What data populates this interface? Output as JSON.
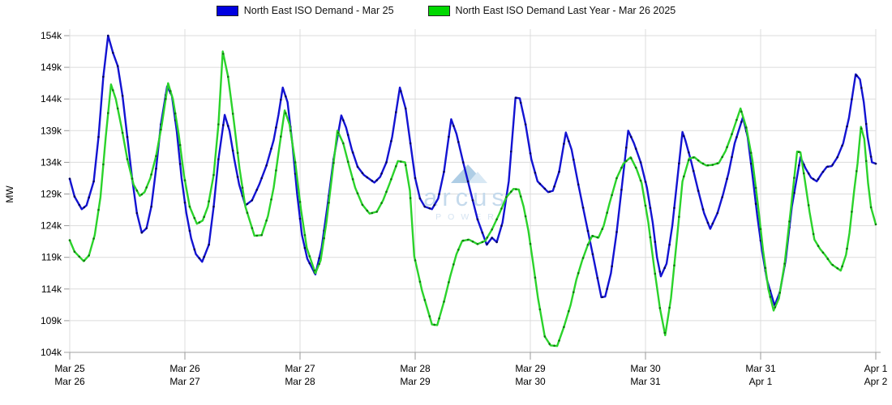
{
  "legend": {
    "items": [
      {
        "label": "North East ISO Demand - Mar 25",
        "color": "#0000e0"
      },
      {
        "label": "North East ISO Demand Last Year - Mar 26 2025",
        "color": "#00d800"
      }
    ]
  },
  "y_axis": {
    "title": "MW",
    "tick_labels": [
      "154k",
      "149k",
      "144k",
      "139k",
      "134k",
      "129k",
      "124k",
      "119k",
      "114k",
      "109k",
      "104k"
    ],
    "tick_values": [
      154,
      149,
      144,
      139,
      134,
      129,
      124,
      119,
      114,
      109,
      104
    ]
  },
  "x_axis": {
    "ticks": [
      {
        "top": "Mar 25",
        "bottom": "Mar 26"
      },
      {
        "top": "Mar 26",
        "bottom": "Mar 27"
      },
      {
        "top": "Mar 27",
        "bottom": "Mar 28"
      },
      {
        "top": "Mar 28",
        "bottom": "Mar 29"
      },
      {
        "top": "Mar 29",
        "bottom": "Mar 30"
      },
      {
        "top": "Mar 30",
        "bottom": "Mar 31"
      },
      {
        "top": "Mar 31",
        "bottom": "Apr 1"
      },
      {
        "top": "Apr 1",
        "bottom": "Apr 2"
      }
    ]
  },
  "watermark": {
    "word": "arcus",
    "sub": "POWER",
    "color": "#c5daec",
    "icon_color": "#aecde5",
    "icon_color_light": "#d8e8f4"
  },
  "chart_data": {
    "type": "line",
    "title": "",
    "xlabel": "",
    "ylabel": "MW",
    "x_unit": "hours from Mar 25 00:00 (1 gridline = 1 day)",
    "y_unit": "thousand MW",
    "x_range": [
      0,
      168
    ],
    "y_range": [
      104,
      154
    ],
    "grid": true,
    "legend_position": "top-center",
    "marker_every_hours": 1,
    "colors": {
      "grid": "#dcdcdc",
      "axis": "#a0a0a0",
      "tick": "#999999",
      "label": "#000000"
    },
    "series": [
      {
        "name": "North East ISO Demand - Mar 25",
        "color": "#1313d2",
        "marker_color": "#00005e",
        "points": [
          [
            0,
            131.4
          ],
          [
            1,
            128.6
          ],
          [
            2.5,
            126.6
          ],
          [
            3.5,
            127.2
          ],
          [
            5,
            131
          ],
          [
            6,
            138
          ],
          [
            7,
            147.5
          ],
          [
            8,
            154
          ],
          [
            9,
            151.3
          ],
          [
            10,
            149.2
          ],
          [
            11,
            144.5
          ],
          [
            12,
            138
          ],
          [
            13,
            131.5
          ],
          [
            14,
            126
          ],
          [
            15,
            122.9
          ],
          [
            16,
            123.6
          ],
          [
            17,
            127
          ],
          [
            18,
            133
          ],
          [
            19,
            140
          ],
          [
            20.3,
            146
          ],
          [
            21.3,
            144.5
          ],
          [
            22.3,
            139
          ],
          [
            23.3,
            131.5
          ],
          [
            24.3,
            126
          ],
          [
            25.3,
            122
          ],
          [
            26.3,
            119.5
          ],
          [
            27.6,
            118.3
          ],
          [
            29,
            121
          ],
          [
            30,
            127
          ],
          [
            31,
            134.5
          ],
          [
            32.3,
            141.5
          ],
          [
            33.3,
            139
          ],
          [
            34.3,
            134.5
          ],
          [
            35.3,
            130.5
          ],
          [
            36.6,
            127.2
          ],
          [
            38,
            128
          ],
          [
            39.5,
            130.5
          ],
          [
            41,
            133.5
          ],
          [
            42.5,
            137.5
          ],
          [
            43.5,
            141.5
          ],
          [
            44.4,
            145.8
          ],
          [
            45.4,
            143.5
          ],
          [
            46.4,
            137
          ],
          [
            47.4,
            129
          ],
          [
            48.4,
            122.5
          ],
          [
            49.5,
            118.8
          ],
          [
            51.2,
            116.3
          ],
          [
            52.5,
            120.5
          ],
          [
            53.7,
            127
          ],
          [
            55,
            134.5
          ],
          [
            56.6,
            141.4
          ],
          [
            57.6,
            139.5
          ],
          [
            58.8,
            136
          ],
          [
            60,
            133.3
          ],
          [
            61.3,
            132
          ],
          [
            63.5,
            130.8
          ],
          [
            64.7,
            131.7
          ],
          [
            66,
            134
          ],
          [
            67.2,
            138
          ],
          [
            68.8,
            145.8
          ],
          [
            70,
            142.5
          ],
          [
            71,
            137
          ],
          [
            72,
            131.5
          ],
          [
            73,
            128.3
          ],
          [
            74,
            127
          ],
          [
            75.5,
            126.6
          ],
          [
            76.8,
            128.3
          ],
          [
            78,
            132.5
          ],
          [
            79.5,
            140.8
          ],
          [
            80.6,
            138.5
          ],
          [
            82,
            134
          ],
          [
            83.5,
            129.5
          ],
          [
            85,
            125
          ],
          [
            86.9,
            121
          ],
          [
            88,
            122.1
          ],
          [
            89,
            121.4
          ],
          [
            90.2,
            124.5
          ],
          [
            91.5,
            131
          ],
          [
            92.9,
            144.2
          ],
          [
            93.8,
            144.1
          ],
          [
            95,
            140
          ],
          [
            96.2,
            134.5
          ],
          [
            97.5,
            131
          ],
          [
            99.7,
            129.3
          ],
          [
            100.7,
            129.5
          ],
          [
            102,
            132.5
          ],
          [
            103.4,
            138.7
          ],
          [
            104.6,
            136
          ],
          [
            106,
            130.5
          ],
          [
            107.5,
            125
          ],
          [
            109,
            119.5
          ],
          [
            110.8,
            112.7
          ],
          [
            111.6,
            112.8
          ],
          [
            112.8,
            116.5
          ],
          [
            114,
            123
          ],
          [
            115.2,
            131
          ],
          [
            116.4,
            139
          ],
          [
            117.6,
            137
          ],
          [
            119,
            134
          ],
          [
            120.3,
            130
          ],
          [
            121.5,
            124.5
          ],
          [
            122.4,
            119
          ],
          [
            123.2,
            116
          ],
          [
            124.4,
            118
          ],
          [
            125.6,
            124
          ],
          [
            126.6,
            131
          ],
          [
            127.7,
            138.8
          ],
          [
            128.3,
            137.5
          ],
          [
            129.5,
            134.2
          ],
          [
            131,
            129.5
          ],
          [
            132.2,
            126
          ],
          [
            133.5,
            123.5
          ],
          [
            135,
            126
          ],
          [
            136.2,
            129
          ],
          [
            137.3,
            132.3
          ],
          [
            138.6,
            137
          ],
          [
            140.3,
            141.1
          ],
          [
            141.3,
            138
          ],
          [
            142.3,
            132
          ],
          [
            143.3,
            125.5
          ],
          [
            144.3,
            120
          ],
          [
            145.3,
            115.5
          ],
          [
            146.9,
            111.4
          ],
          [
            148,
            113.5
          ],
          [
            149.2,
            118.5
          ],
          [
            150.5,
            127
          ],
          [
            152.3,
            134.8
          ],
          [
            153.4,
            133
          ],
          [
            154.5,
            131.6
          ],
          [
            155.7,
            131
          ],
          [
            156.8,
            132.3
          ],
          [
            157.8,
            133.3
          ],
          [
            158.8,
            133.4
          ],
          [
            160,
            134.8
          ],
          [
            161.2,
            137
          ],
          [
            162.4,
            141
          ],
          [
            163.8,
            147.9
          ],
          [
            164.7,
            147.1
          ],
          [
            165.5,
            143.5
          ],
          [
            166.3,
            138
          ],
          [
            167.2,
            134
          ],
          [
            168,
            133.8
          ]
        ]
      },
      {
        "name": "North East ISO Demand Last Year - Mar 26 2025",
        "color": "#2bd32b",
        "marker_color": "#0e7a0e",
        "points": [
          [
            0,
            121.7
          ],
          [
            1,
            119.9
          ],
          [
            2.9,
            118.4
          ],
          [
            4,
            119.3
          ],
          [
            5.2,
            122.5
          ],
          [
            6.4,
            128.5
          ],
          [
            7.5,
            138
          ],
          [
            8.6,
            146.3
          ],
          [
            9.6,
            144
          ],
          [
            10.8,
            139.5
          ],
          [
            12,
            134.5
          ],
          [
            13.3,
            130.5
          ],
          [
            14.6,
            128.7
          ],
          [
            15.6,
            129.3
          ],
          [
            16.8,
            131.5
          ],
          [
            18,
            135
          ],
          [
            19.2,
            140
          ],
          [
            20.5,
            146.5
          ],
          [
            21.5,
            144
          ],
          [
            22.7,
            138.5
          ],
          [
            23.8,
            132
          ],
          [
            25,
            127
          ],
          [
            26.5,
            124.3
          ],
          [
            27.7,
            124.8
          ],
          [
            28.8,
            127
          ],
          [
            30,
            132
          ],
          [
            31,
            140
          ],
          [
            31.9,
            151.5
          ],
          [
            33,
            147.5
          ],
          [
            34.2,
            140.5
          ],
          [
            35.4,
            133
          ],
          [
            36.6,
            127
          ],
          [
            38.5,
            122.4
          ],
          [
            40,
            122.5
          ],
          [
            41.3,
            125.5
          ],
          [
            42.5,
            130
          ],
          [
            43.6,
            136
          ],
          [
            44.8,
            142.2
          ],
          [
            45.8,
            140
          ],
          [
            47,
            134
          ],
          [
            48.2,
            126.5
          ],
          [
            49.4,
            120.5
          ],
          [
            51.2,
            116.5
          ],
          [
            52.3,
            118.5
          ],
          [
            53.5,
            124.5
          ],
          [
            54.7,
            132
          ],
          [
            55.8,
            139
          ],
          [
            57,
            137
          ],
          [
            58.2,
            133.5
          ],
          [
            59.5,
            130
          ],
          [
            61,
            127.3
          ],
          [
            62.5,
            125.9
          ],
          [
            64,
            126.2
          ],
          [
            65.3,
            128
          ],
          [
            66.6,
            130.5
          ],
          [
            68.4,
            134.2
          ],
          [
            69.9,
            134
          ],
          [
            70.9,
            129.5
          ],
          [
            71.8,
            119.2
          ],
          [
            73.4,
            113.8
          ],
          [
            75.5,
            108.4
          ],
          [
            76.6,
            108.3
          ],
          [
            78,
            112
          ],
          [
            79.3,
            116
          ],
          [
            80.6,
            119.5
          ],
          [
            81.8,
            121.6
          ],
          [
            83.2,
            121.8
          ],
          [
            85,
            121.1
          ],
          [
            86.6,
            121.6
          ],
          [
            88,
            123.4
          ],
          [
            89.5,
            125.8
          ],
          [
            91,
            128.5
          ],
          [
            92.5,
            129.8
          ],
          [
            93.6,
            129.7
          ],
          [
            94.6,
            127
          ],
          [
            95.6,
            123.2
          ],
          [
            96.6,
            118
          ],
          [
            97.6,
            112.5
          ],
          [
            99,
            106.5
          ],
          [
            100.2,
            105.1
          ],
          [
            101.6,
            105
          ],
          [
            103,
            108
          ],
          [
            104.4,
            111.5
          ],
          [
            105.6,
            115.5
          ],
          [
            106.8,
            118.5
          ],
          [
            108,
            121
          ],
          [
            108.9,
            122.4
          ],
          [
            110.2,
            122.1
          ],
          [
            111.3,
            124
          ],
          [
            112.5,
            127.5
          ],
          [
            114,
            131.5
          ],
          [
            115.4,
            133.8
          ],
          [
            116.9,
            134.8
          ],
          [
            118.1,
            133
          ],
          [
            119.2,
            130.7
          ],
          [
            120.6,
            124.5
          ],
          [
            121.8,
            117.5
          ],
          [
            123,
            111
          ],
          [
            124.1,
            106.7
          ],
          [
            125.3,
            112.5
          ],
          [
            126.6,
            122.2
          ],
          [
            127.7,
            131
          ],
          [
            129.1,
            134.6
          ],
          [
            130.2,
            134.8
          ],
          [
            131.5,
            134
          ],
          [
            132.7,
            133.5
          ],
          [
            134,
            133.6
          ],
          [
            135.3,
            133.9
          ],
          [
            136.7,
            135.8
          ],
          [
            137.8,
            138
          ],
          [
            139.8,
            142.5
          ],
          [
            141,
            139.5
          ],
          [
            142.3,
            134.3
          ],
          [
            143.4,
            127.5
          ],
          [
            144.5,
            120.1
          ],
          [
            145.6,
            114
          ],
          [
            146.7,
            110.6
          ],
          [
            147.8,
            112.5
          ],
          [
            149,
            118
          ],
          [
            150.2,
            126
          ],
          [
            151.6,
            135.7
          ],
          [
            152.3,
            135.6
          ],
          [
            153.2,
            131.3
          ],
          [
            154.2,
            126.2
          ],
          [
            155.2,
            121.8
          ],
          [
            156.4,
            120.3
          ],
          [
            157.4,
            119.4
          ],
          [
            158.8,
            117.9
          ],
          [
            160.7,
            116.9
          ],
          [
            161.8,
            119.4
          ],
          [
            162.5,
            122.8
          ],
          [
            163.5,
            129.6
          ],
          [
            164.2,
            133.8
          ],
          [
            164.9,
            139.6
          ],
          [
            165.6,
            137.7
          ],
          [
            166.4,
            130.7
          ],
          [
            167,
            126.9
          ],
          [
            168,
            124.2
          ]
        ]
      }
    ]
  }
}
